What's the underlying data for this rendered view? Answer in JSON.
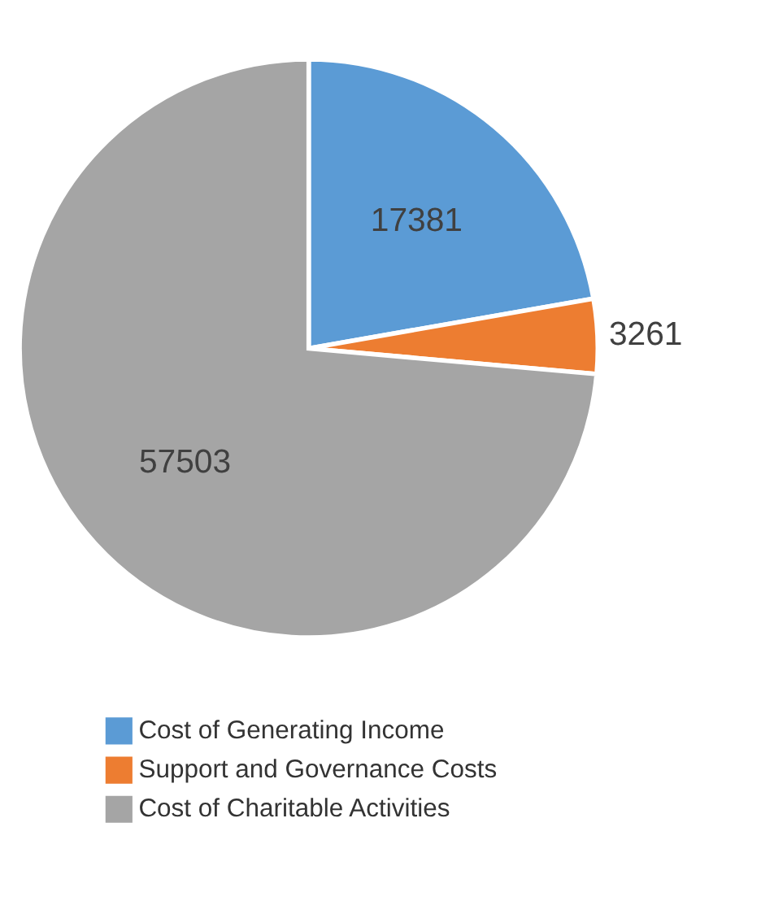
{
  "chart_data": {
    "type": "pie",
    "categories": [
      "Cost of Generating Income",
      "Support and Governance Costs",
      "Cost of Charitable Activities"
    ],
    "values": [
      17381,
      3261,
      57503
    ],
    "colors": [
      "#5b9bd5",
      "#ed7d31",
      "#a5a5a5"
    ],
    "data_labels": true,
    "legend": "bottom"
  }
}
